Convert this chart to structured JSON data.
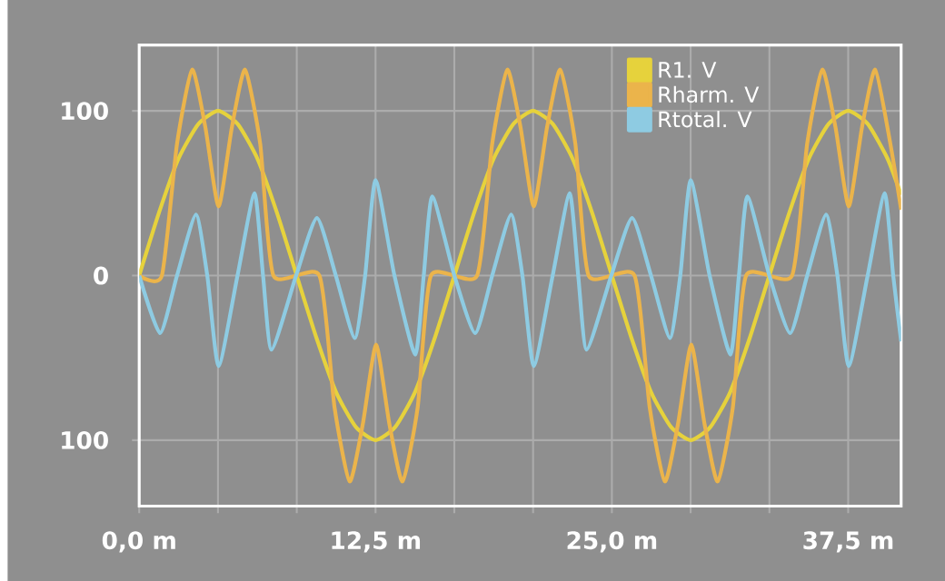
{
  "chart_data": {
    "type": "line",
    "xlim": [
      0,
      40.3
    ],
    "ylim": [
      -140,
      140
    ],
    "xticks": [
      {
        "value": 0,
        "label": "0,0 m"
      },
      {
        "value": 4.1667,
        "label": null
      },
      {
        "value": 8.3333,
        "label": null
      },
      {
        "value": 12.5,
        "label": "12,5 m"
      },
      {
        "value": 16.6667,
        "label": null
      },
      {
        "value": 20.8333,
        "label": null
      },
      {
        "value": 25,
        "label": "25,0 m"
      },
      {
        "value": 29.1667,
        "label": null
      },
      {
        "value": 33.3333,
        "label": null
      },
      {
        "value": 37.5,
        "label": "37,5 m"
      }
    ],
    "yticks": [
      {
        "value": -100,
        "label": "100"
      },
      0,
      100
    ],
    "grid": true,
    "legend": "top right",
    "marker": "none",
    "line_style": "solid",
    "series": [
      {
        "name": "R1. V",
        "color": "#e6d23c",
        "x": [
          0,
          1.04,
          2.08,
          3.13,
          4.17,
          5.21,
          6.25,
          7.29,
          8.33,
          9.38,
          10.42,
          11.46,
          12.5,
          13.54,
          14.58,
          15.63,
          16.67,
          17.71,
          18.75,
          19.79,
          20.83,
          21.88,
          22.92,
          23.96,
          25,
          26.04,
          27.08,
          28.13,
          29.17,
          30.21,
          31.25,
          32.29,
          33.33,
          34.38,
          35.42,
          36.46,
          37.5,
          38.54,
          39.58,
          40.3
        ],
        "values": [
          0,
          38,
          71,
          92,
          100,
          92,
          71,
          38,
          0,
          -38,
          -71,
          -92,
          -100,
          -92,
          -71,
          -38,
          0,
          38,
          71,
          92,
          100,
          92,
          71,
          38,
          0,
          -38,
          -71,
          -92,
          -100,
          -92,
          -71,
          -38,
          0,
          38,
          71,
          92,
          100,
          92,
          71,
          49
        ]
      },
      {
        "name": "Rharm. V",
        "color": "#ebb44b",
        "x": [
          0,
          1.2,
          2.0,
          2.8,
          3.5,
          4.2,
          4.9,
          5.6,
          6.4,
          7.1,
          9.53,
          10.33,
          11.13,
          11.83,
          12.53,
          13.23,
          13.93,
          14.73,
          15.43,
          17.87,
          18.67,
          19.47,
          20.17,
          20.87,
          21.57,
          22.27,
          23.07,
          23.77,
          26.2,
          27.0,
          27.8,
          28.5,
          29.2,
          29.9,
          30.6,
          31.4,
          32.1,
          34.53,
          35.33,
          36.13,
          36.83,
          37.53,
          38.23,
          38.93,
          39.73,
          40.3
        ],
        "values": [
          0,
          0,
          80,
          125,
          90,
          42,
          90,
          125,
          80,
          0,
          0,
          -80,
          -125,
          -90,
          -42,
          -90,
          -125,
          -80,
          0,
          0,
          80,
          125,
          90,
          42,
          90,
          125,
          80,
          0,
          0,
          -80,
          -125,
          -90,
          -42,
          -90,
          -125,
          -80,
          0,
          0,
          80,
          125,
          90,
          42,
          90,
          125,
          80,
          40
        ]
      },
      {
        "name": "Rtotal. V",
        "color": "#8ecbe2",
        "x": [
          0,
          1.1,
          2.0,
          3.0,
          3.6,
          4.2,
          5.2,
          6.1,
          6.55,
          7.0,
          8.3,
          9.4,
          10.4,
          11.4,
          11.95,
          12.5,
          13.5,
          14.6,
          15.05,
          15.5,
          16.67,
          17.77,
          18.67,
          19.67,
          20.27,
          20.87,
          21.87,
          22.77,
          23.22,
          23.67,
          24.97,
          26.07,
          27.07,
          28.07,
          28.62,
          29.17,
          30.17,
          31.27,
          31.72,
          32.17,
          33.33,
          34.43,
          35.33,
          36.33,
          36.93,
          37.53,
          38.53,
          39.43,
          39.88,
          40.3
        ],
        "values": [
          0,
          -35,
          0,
          37,
          0,
          -55,
          0,
          50,
          0,
          -45,
          0,
          35,
          0,
          -38,
          0,
          58,
          0,
          -48,
          0,
          48,
          0,
          -35,
          0,
          37,
          0,
          -55,
          0,
          50,
          0,
          -45,
          0,
          35,
          0,
          -38,
          0,
          58,
          0,
          -48,
          0,
          48,
          0,
          -35,
          0,
          37,
          0,
          -55,
          0,
          50,
          0,
          -40
        ]
      }
    ]
  }
}
